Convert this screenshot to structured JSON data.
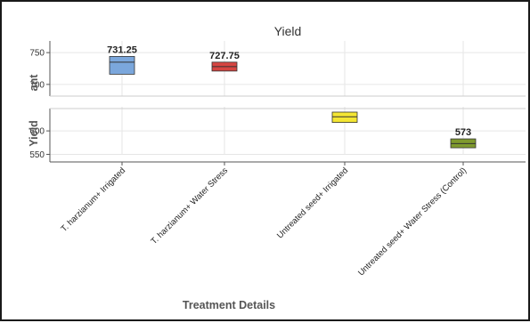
{
  "chart_data": {
    "type": "box",
    "title": "Yield",
    "xlabel": "Treatment Details",
    "ylabel": "Yield",
    "ylabel_upper_fragment": "ant",
    "categories": [
      "T. harzianum+ Irrigated",
      "T. harzianum+ Water Stress",
      "Untreated seed+ Irrigated",
      "Untreated seed+ Water Stress (Control)"
    ],
    "boxes": [
      {
        "q1": 716,
        "median": 735,
        "q3": 744,
        "color": "#7ba7dc",
        "label": "731.25"
      },
      {
        "q1": 721,
        "median": 728,
        "q3": 735,
        "color": "#d64541",
        "label": "727.75"
      },
      {
        "q1": 618,
        "median": 630,
        "q3": 640,
        "color": "#f4e633",
        "label": ""
      },
      {
        "q1": 564,
        "median": 573,
        "q3": 583,
        "color": "#7f9a2e",
        "label": "573"
      }
    ],
    "yaxis_upper": {
      "range": [
        690,
        760
      ],
      "ticks": [
        700,
        750
      ]
    },
    "yaxis_lower": {
      "range": [
        549,
        640
      ],
      "ticks": [
        550,
        600
      ]
    },
    "grid": true,
    "broken_axis": true
  }
}
